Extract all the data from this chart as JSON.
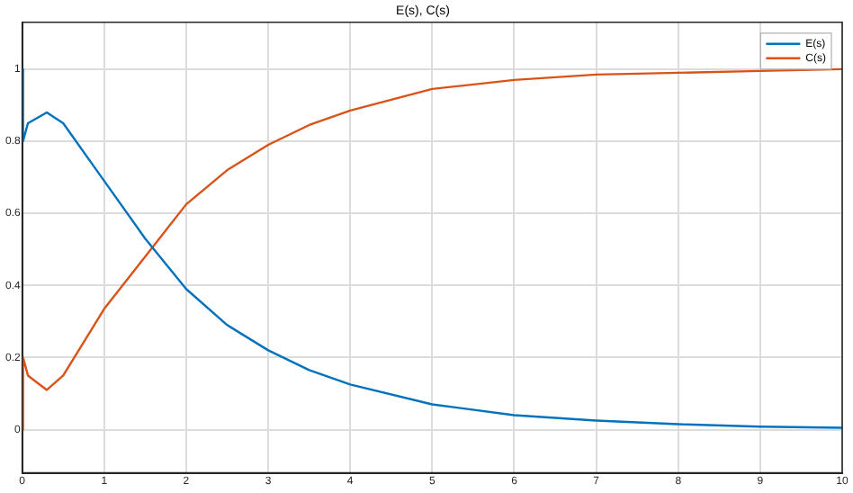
{
  "chart_data": {
    "type": "line",
    "title": "E(s), C(s)",
    "x": [
      0,
      0.01,
      0.07,
      0.3,
      0.5,
      1,
      1.5,
      2,
      2.5,
      3,
      3.5,
      4,
      5,
      6,
      7,
      8,
      9,
      10
    ],
    "series": [
      {
        "name": "E(s)",
        "color": "#0072bd",
        "values": [
          1,
          0.8,
          0.85,
          0.88,
          0.85,
          0.69,
          0.53,
          0.39,
          0.29,
          0.22,
          0.165,
          0.125,
          0.07,
          0.04,
          0.025,
          0.015,
          0.008,
          0.005
        ]
      },
      {
        "name": "C(s)",
        "color": "#d95319",
        "values": [
          0,
          0.2,
          0.15,
          0.11,
          0.15,
          0.335,
          0.48,
          0.625,
          0.72,
          0.79,
          0.845,
          0.885,
          0.945,
          0.97,
          0.985,
          0.99,
          0.995,
          1
        ]
      }
    ],
    "xlim": [
      0,
      10
    ],
    "xticks": [
      0,
      1,
      2,
      3,
      4,
      5,
      6,
      7,
      8,
      9,
      10
    ],
    "ylim": [
      -0.12,
      1.13
    ],
    "yticks": [
      0,
      0.2,
      0.4,
      0.6,
      0.8,
      1
    ],
    "grid": true,
    "legend": "top right",
    "marker": "none",
    "line_style": "solid"
  }
}
